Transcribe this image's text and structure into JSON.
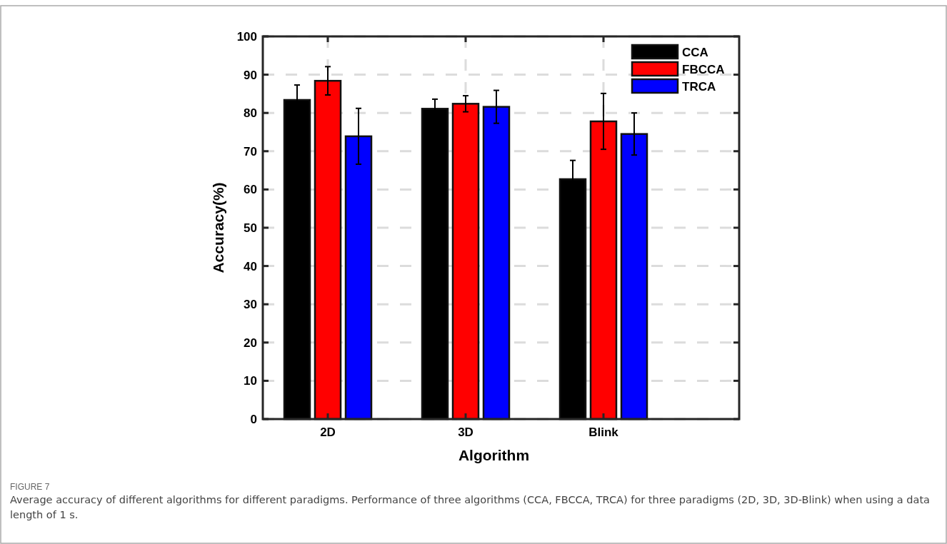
{
  "chart_data": {
    "type": "bar",
    "xlabel": "Algorithm",
    "ylabel": "Accuracy(%)",
    "categories": [
      "2D",
      "3D",
      "Blink"
    ],
    "series": [
      {
        "name": "CCA",
        "color": "#000000",
        "values": [
          83.4,
          81.1,
          62.7
        ],
        "errors": [
          3.9,
          2.5,
          4.9
        ]
      },
      {
        "name": "FBCCA",
        "color": "#ff0000",
        "values": [
          88.4,
          82.4,
          77.8
        ],
        "errors": [
          3.7,
          2.1,
          7.3
        ]
      },
      {
        "name": "TRCA",
        "color": "#0000ff",
        "values": [
          73.9,
          81.6,
          74.5
        ],
        "errors": [
          7.3,
          4.3,
          5.5
        ]
      }
    ],
    "ylim": [
      0,
      100
    ],
    "yticks": [
      0,
      10,
      20,
      30,
      40,
      50,
      60,
      70,
      80,
      90,
      100
    ],
    "grid": true,
    "legend": "top right",
    "annotations": [
      "FIGURE 7",
      "Average accuracy of different algorithms for different paradigms. Performance of three algorithms (CCA, FBCCA, TRCA) for three paradigms (2D, 3D, 3D-Blink) when using a data length of 1 s."
    ]
  }
}
